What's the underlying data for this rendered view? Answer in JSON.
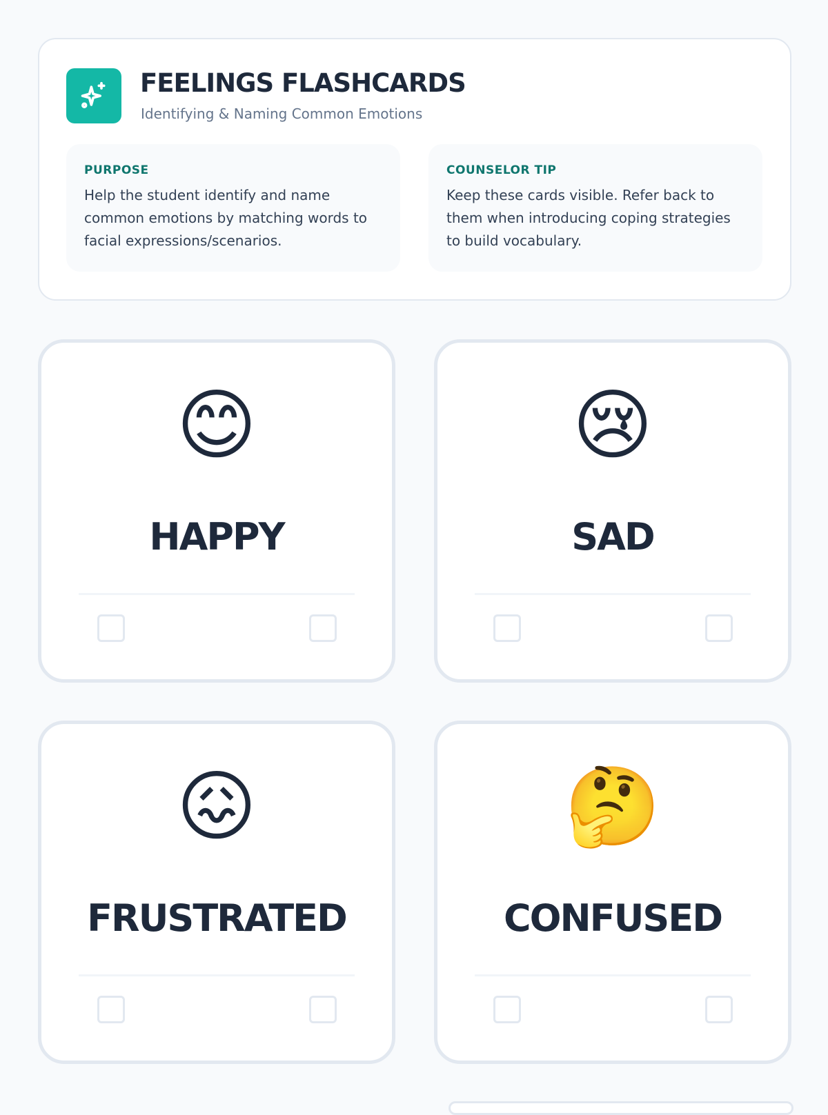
{
  "header": {
    "icon": "sparkles-icon",
    "accent": "#14b8a6",
    "title": "FEELINGS FLASHCARDS",
    "subtitle": "Identifying & Naming Common Emotions",
    "purpose": {
      "label": "PURPOSE",
      "text": "Help the student identify and name common emotions by matching words to facial expressions/scenarios."
    },
    "tip": {
      "label": "COUNSELOR TIP",
      "text": "Keep these cards visible. Refer back to them when introducing coping strategies to build vocabulary."
    }
  },
  "cards": [
    {
      "emoji": "😊",
      "word": "HAPPY"
    },
    {
      "emoji": "😢",
      "word": "SAD"
    },
    {
      "emoji": "😖",
      "word": "FRUSTRATED"
    },
    {
      "emoji": "🤔",
      "word": "CONFUSED"
    }
  ]
}
